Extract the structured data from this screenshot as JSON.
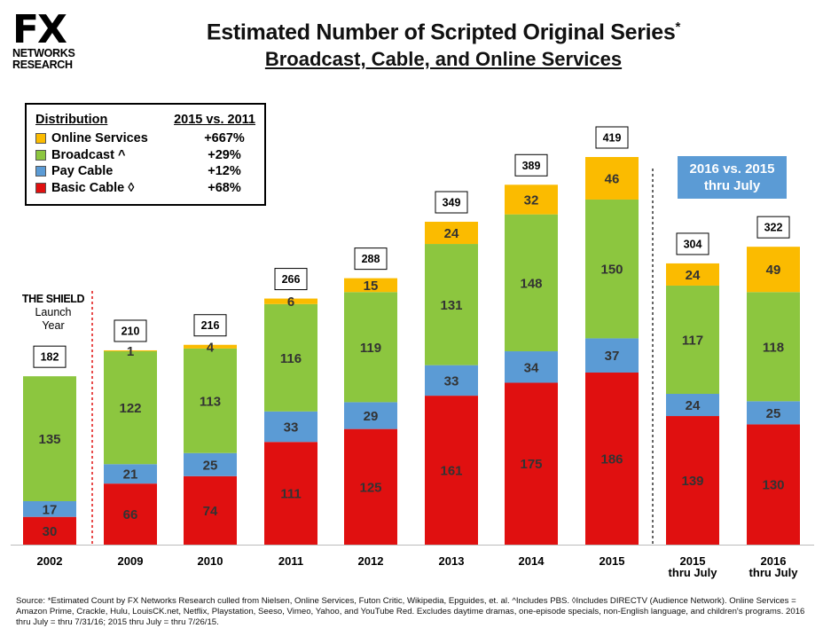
{
  "brand": {
    "logo_line1": "FX",
    "logo_line2": "NETWORKS",
    "logo_line3": "RESEARCH"
  },
  "header": {
    "title": "Estimated Number of Scripted Original Series",
    "title_mark": "*",
    "subtitle": "Broadcast, Cable, and Online Services"
  },
  "legend": {
    "header_left": "Distribution",
    "header_right": "2015 vs. 2011",
    "items": [
      {
        "name": "Online Services",
        "change": "+667%",
        "color": "#fbbb00"
      },
      {
        "name": "Broadcast ^",
        "change": "+29%",
        "color": "#8cc63f"
      },
      {
        "name": "Pay Cable",
        "change": "+12%",
        "color": "#5b9bd5"
      },
      {
        "name": "Basic Cable ◊",
        "change": "+68%",
        "color": "#e01010"
      }
    ]
  },
  "note": {
    "line1": "THE SHIELD",
    "line2": "Launch",
    "line3": "Year"
  },
  "callout": {
    "text": "2016 vs. 2015\nthru July"
  },
  "chart_data": {
    "type": "bar",
    "stacked": true,
    "categories": [
      "2002",
      "2009",
      "2010",
      "2011",
      "2012",
      "2013",
      "2014",
      "2015",
      "2015\nthru July",
      "2016\nthru July"
    ],
    "series": [
      {
        "name": "Basic Cable ◊",
        "color": "#e01010",
        "values": [
          30,
          66,
          74,
          111,
          125,
          161,
          175,
          186,
          139,
          130
        ]
      },
      {
        "name": "Pay Cable",
        "color": "#5b9bd5",
        "values": [
          17,
          21,
          25,
          33,
          29,
          33,
          34,
          37,
          24,
          25
        ]
      },
      {
        "name": "Broadcast ^",
        "color": "#8cc63f",
        "values": [
          135,
          122,
          113,
          116,
          119,
          131,
          148,
          150,
          117,
          118
        ]
      },
      {
        "name": "Online Services",
        "color": "#fbbb00",
        "values": [
          0,
          1,
          4,
          6,
          15,
          24,
          32,
          46,
          24,
          49
        ]
      }
    ],
    "totals": [
      182,
      210,
      216,
      266,
      288,
      349,
      389,
      419,
      304,
      322
    ],
    "ylim": [
      0,
      419
    ]
  },
  "source": {
    "text": "Source:  *Estimated Count by FX Networks Research culled from Nielsen, Online Services, Futon Critic, Wikipedia, Epguides, et. al.  ^Includes PBS.  ◊Includes DIRECTV (Audience Network).  Online Services = Amazon Prime, Crackle, Hulu, LouisCK.net, Netflix, Playstation, Seeso, Vimeo, Yahoo, and YouTube Red.   Excludes daytime dramas, one-episode specials, non-English language, and children's programs.  2016 thru July = thru 7/31/16; 2015 thru July = thru 7/26/15."
  }
}
